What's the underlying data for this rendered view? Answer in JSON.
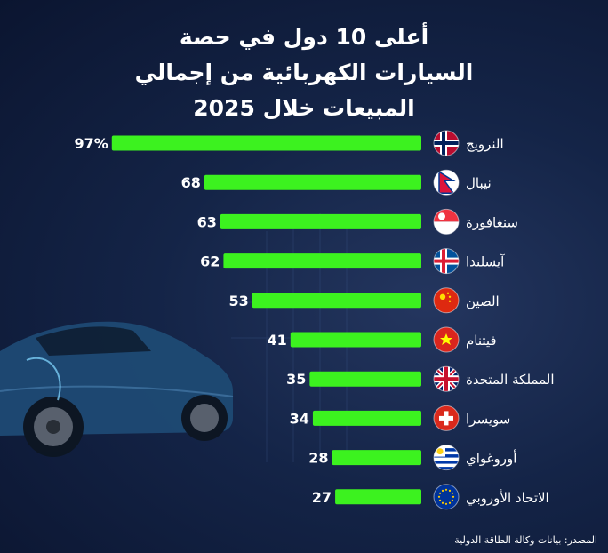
{
  "title_lines": [
    "أعلى 10 دول في حصة",
    "السيارات الكهربائية من إجمالي",
    "المبيعات خلال 2025"
  ],
  "source": "المصدر: بيانات وكالة الطاقة الدولية",
  "colors": {
    "bar": "#3cf21f",
    "label": "#ffffff",
    "value": "#ffffff"
  },
  "chart_data": {
    "type": "bar",
    "orientation": "horizontal",
    "direction": "rtl",
    "grid": false,
    "categories": [
      "النرويج",
      "نيبال",
      "سنغافورة",
      "آيسلندا",
      "الصين",
      "فيتنام",
      "المملكة المتحدة",
      "سويسرا",
      "أوروغواي",
      "الاتحاد الأوروبي"
    ],
    "values": [
      97,
      68,
      63,
      62,
      53,
      41,
      35,
      34,
      28,
      27
    ],
    "value_labels": [
      "97%",
      "68",
      "63",
      "62",
      "53",
      "41",
      "35",
      "34",
      "28",
      "27"
    ],
    "flags": [
      "norway-flag",
      "nepal-flag",
      "singapore-flag",
      "iceland-flag",
      "china-flag",
      "vietnam-flag",
      "uk-flag",
      "switzerland-flag",
      "uruguay-flag",
      "eu-flag"
    ],
    "xlim": [
      0,
      100
    ]
  }
}
